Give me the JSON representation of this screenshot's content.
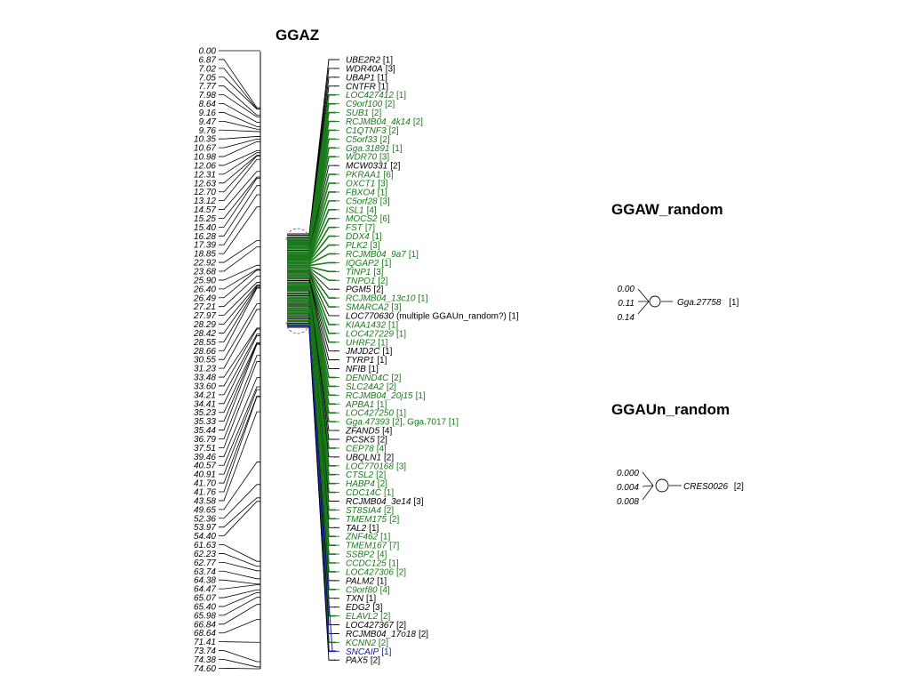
{
  "colors": {
    "black": "#000000",
    "green": "#1a7a1a",
    "blue": "#1a1aaa"
  },
  "main_map": {
    "title": "GGAZ",
    "ticks": [
      "0.00",
      "6.87",
      "7.02",
      "7.05",
      "7.77",
      "7.98",
      "8.64",
      "9.16",
      "9.47",
      "9.76",
      "10.35",
      "10.67",
      "10.98",
      "12.06",
      "12.31",
      "12.63",
      "12.70",
      "13.12",
      "14.57",
      "15.25",
      "15.40",
      "16.28",
      "17.39",
      "18.85",
      "22.92",
      "23.68",
      "25.90",
      "26.40",
      "26.49",
      "27.21",
      "27.97",
      "28.29",
      "28.42",
      "28.55",
      "28.66",
      "30.55",
      "31.23",
      "33.48",
      "33.60",
      "34.21",
      "34.41",
      "35.23",
      "35.33",
      "35.44",
      "36.79",
      "37.51",
      "39.46",
      "40.57",
      "40.91",
      "41.70",
      "41.76",
      "43.58",
      "49.65",
      "52.36",
      "53.97",
      "54.40",
      "61.63",
      "62.23",
      "62.77",
      "63.74",
      "64.38",
      "64.47",
      "65.07",
      "65.40",
      "65.98",
      "66.84",
      "68.64",
      "71.41",
      "73.74",
      "74.38",
      "74.60"
    ],
    "genes": [
      {
        "name": "UBE2R2",
        "count": "[1]",
        "color": "black"
      },
      {
        "name": "WDR40A",
        "count": "[3]",
        "color": "black"
      },
      {
        "name": "UBAP1",
        "count": "[1]",
        "color": "black"
      },
      {
        "name": "CNTFR",
        "count": "[1]",
        "color": "black"
      },
      {
        "name": "LOC427412",
        "count": "[1]",
        "color": "green"
      },
      {
        "name": "C9orf100",
        "count": "[2]",
        "color": "green"
      },
      {
        "name": "SUB1",
        "count": "[2]",
        "color": "green"
      },
      {
        "name": "RCJMB04_4k14",
        "count": "[2]",
        "color": "green"
      },
      {
        "name": "C1QTNF3",
        "count": "[2]",
        "color": "green"
      },
      {
        "name": "C5orf33",
        "count": "[2]",
        "color": "green"
      },
      {
        "name": "Gga.31891",
        "count": "[1]",
        "color": "green"
      },
      {
        "name": "WDR70",
        "count": "[3]",
        "color": "green"
      },
      {
        "name": "MCW0331",
        "count": "[2]",
        "color": "black"
      },
      {
        "name": "PKRAA1",
        "count": "[6]",
        "color": "green"
      },
      {
        "name": "OXCT1",
        "count": "[3]",
        "color": "green"
      },
      {
        "name": "FBXO4",
        "count": "[1]",
        "color": "green"
      },
      {
        "name": "C5orf28",
        "count": "[3]",
        "color": "green"
      },
      {
        "name": "ISL1",
        "count": "[4]",
        "color": "green"
      },
      {
        "name": "MOCS2",
        "count": "[6]",
        "color": "green"
      },
      {
        "name": "FST",
        "count": "[7]",
        "color": "green"
      },
      {
        "name": "DDX4",
        "count": "[1]",
        "color": "green"
      },
      {
        "name": "PLK2",
        "count": "[3]",
        "color": "green"
      },
      {
        "name": "RCJMB04_9a7",
        "count": "[1]",
        "color": "green"
      },
      {
        "name": "IQGAP2",
        "count": "[1]",
        "color": "green"
      },
      {
        "name": "TINP1",
        "count": "[3]",
        "color": "green"
      },
      {
        "name": "TNPO1",
        "count": "[2]",
        "color": "green"
      },
      {
        "name": "PGM5",
        "count": "[2]",
        "color": "black"
      },
      {
        "name": "RCJMB04_13c10",
        "count": "[1]",
        "color": "green"
      },
      {
        "name": "SMARCA2",
        "count": "[3]",
        "color": "green"
      },
      {
        "name": "LOC770630",
        "count": "(multiple GGAUn_random?) [1]",
        "color": "black"
      },
      {
        "name": "KIAA1432",
        "count": "[1]",
        "color": "green"
      },
      {
        "name": "LOC427229",
        "count": "[1]",
        "color": "green"
      },
      {
        "name": "UHRF2",
        "count": "[1]",
        "color": "green"
      },
      {
        "name": "JMJD2C",
        "count": "[1]",
        "color": "black"
      },
      {
        "name": "TYRP1",
        "count": "[1]",
        "color": "black"
      },
      {
        "name": "NFIB",
        "count": "[1]",
        "color": "black"
      },
      {
        "name": "DENND4C",
        "count": "[2]",
        "color": "green"
      },
      {
        "name": "SLC24A2",
        "count": "[2]",
        "color": "green"
      },
      {
        "name": "RCJMB04_20j15",
        "count": "[1]",
        "color": "green"
      },
      {
        "name": "APBA1",
        "count": "[1]",
        "color": "green"
      },
      {
        "name": "LOC427250",
        "count": "[1]",
        "color": "green"
      },
      {
        "name": "Gga.47393",
        "count": "[2], Gga.7017 [1]",
        "color": "green"
      },
      {
        "name": "ZFAND5",
        "count": "[4]",
        "color": "black"
      },
      {
        "name": "PCSK5",
        "count": "[2]",
        "color": "black"
      },
      {
        "name": "CEP78",
        "count": "[4]",
        "color": "green"
      },
      {
        "name": "UBQLN1",
        "count": "[2]",
        "color": "black"
      },
      {
        "name": "LOC770168",
        "count": "[3]",
        "color": "green"
      },
      {
        "name": "CTSL2",
        "count": "[2]",
        "color": "green"
      },
      {
        "name": "HABP4",
        "count": "[2]",
        "color": "green"
      },
      {
        "name": "CDC14C",
        "count": "[1]",
        "color": "green"
      },
      {
        "name": "RCJMB04_3e14",
        "count": "[3]",
        "color": "black"
      },
      {
        "name": "ST8SIA4",
        "count": "[2]",
        "color": "green"
      },
      {
        "name": "TMEM175",
        "count": "[2]",
        "color": "green"
      },
      {
        "name": "TAL2",
        "count": "[1]",
        "color": "black"
      },
      {
        "name": "ZNF462",
        "count": "[1]",
        "color": "green"
      },
      {
        "name": "TMEM167",
        "count": "[7]",
        "color": "green"
      },
      {
        "name": "SSBP2",
        "count": "[4]",
        "color": "green"
      },
      {
        "name": "CCDC125",
        "count": "[1]",
        "color": "green"
      },
      {
        "name": "LOC427306",
        "count": "[2]",
        "color": "green"
      },
      {
        "name": "PALM2",
        "count": "[1]",
        "color": "black"
      },
      {
        "name": "C9orf80",
        "count": "[4]",
        "color": "green"
      },
      {
        "name": "TXN",
        "count": "[1]",
        "color": "black"
      },
      {
        "name": "EDG2",
        "count": "[3]",
        "color": "black"
      },
      {
        "name": "ELAVL2",
        "count": "[2]",
        "color": "green"
      },
      {
        "name": "LOC427367",
        "count": "[2]",
        "color": "black"
      },
      {
        "name": "RCJMB04_17o18",
        "count": "[2]",
        "color": "black"
      },
      {
        "name": "KCNN2",
        "count": "[2]",
        "color": "green"
      },
      {
        "name": "SNCAIP",
        "count": "[1]",
        "color": "blue"
      },
      {
        "name": "PAX5",
        "count": "[2]",
        "color": "black"
      }
    ]
  },
  "mini_maps": [
    {
      "title": "GGAW_random",
      "ticks": [
        "0.00",
        "0.11",
        "0.14"
      ],
      "gene": {
        "name": "Gga.27758",
        "count": "[1]"
      }
    },
    {
      "title": "GGAUn_random",
      "ticks": [
        "0.000",
        "0.004",
        "0.008"
      ],
      "gene": {
        "name": "CRES0026",
        "count": "[2]"
      }
    }
  ]
}
